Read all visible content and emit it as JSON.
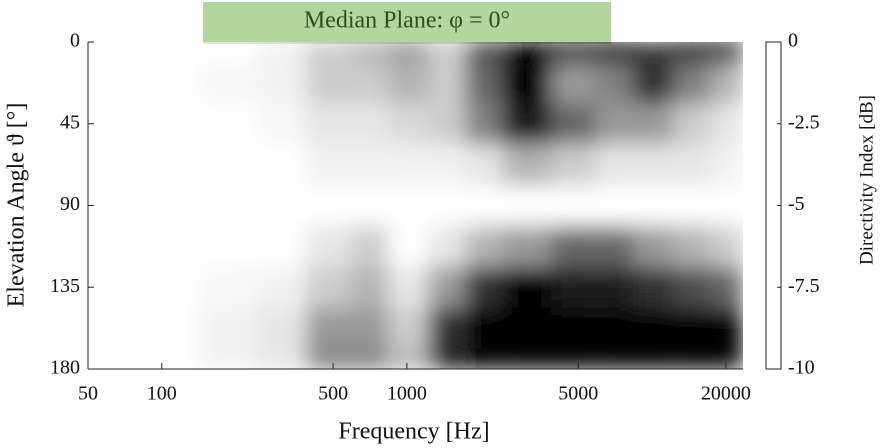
{
  "chart_data": {
    "type": "heatmap",
    "title": "Median Plane: φ = 0°",
    "x_label": "Frequency [Hz]",
    "y_label": "Elevation Angle ϑ [°]",
    "colorbar_label": "Directivity Index [dB]",
    "x": [
      50,
      100,
      200,
      300,
      500,
      700,
      1000,
      1500,
      2000,
      3000,
      5000,
      7000,
      10000,
      15000,
      20000
    ],
    "y": [
      0,
      22.5,
      45,
      67.5,
      90,
      112.5,
      135,
      157.5,
      180
    ],
    "z": [
      [
        0,
        0,
        0,
        -0.5,
        -2,
        -3,
        -4,
        -2,
        -7,
        -10,
        -9,
        -10,
        -8,
        -10,
        -10
      ],
      [
        0,
        0,
        -0.3,
        -0.5,
        -2,
        -2,
        -3,
        -2,
        -6,
        -10,
        -4,
        -5,
        -8,
        -5,
        -3
      ],
      [
        0,
        0,
        0,
        -0.3,
        -1,
        -1,
        -1.5,
        -2,
        -5,
        -9,
        -6,
        -4,
        -4,
        -2,
        -1
      ],
      [
        0,
        0,
        0,
        0,
        -0.5,
        -0.5,
        -0.5,
        -0.5,
        -1,
        -3,
        -2,
        -1,
        -1,
        -1,
        -0.5
      ],
      [
        0,
        0,
        0,
        0,
        0,
        0,
        0,
        0,
        0,
        0,
        0,
        0,
        0,
        0,
        0
      ],
      [
        0,
        0,
        0,
        0,
        -1,
        -2,
        0,
        -1,
        -3,
        -4,
        -6,
        -6,
        -4,
        -3,
        -2
      ],
      [
        0,
        0,
        -0.3,
        -0.5,
        -2,
        -3,
        -1,
        -4,
        -8,
        -10,
        -9,
        -9,
        -8,
        -7,
        -6
      ],
      [
        0,
        0,
        -0.5,
        -1,
        -4,
        -4,
        -2,
        -8,
        -10,
        -10,
        -10,
        -10,
        -10,
        -10,
        -10
      ],
      [
        0,
        0,
        -0.5,
        -1,
        -5,
        -5,
        -3,
        -9,
        -10,
        -10,
        -10,
        -10,
        -10,
        -10,
        -10
      ]
    ],
    "xlim": [
      50,
      23500
    ],
    "xticks": [
      50,
      100,
      500,
      1000,
      5000,
      20000
    ],
    "x_log": true,
    "ylim": [
      180,
      0
    ],
    "yticks": [
      0,
      45,
      90,
      135,
      180
    ],
    "clim": [
      -10,
      0
    ],
    "cticks": [
      0,
      -2.5,
      -5,
      -7.5,
      -10
    ],
    "title_color": "#b3d69f"
  }
}
